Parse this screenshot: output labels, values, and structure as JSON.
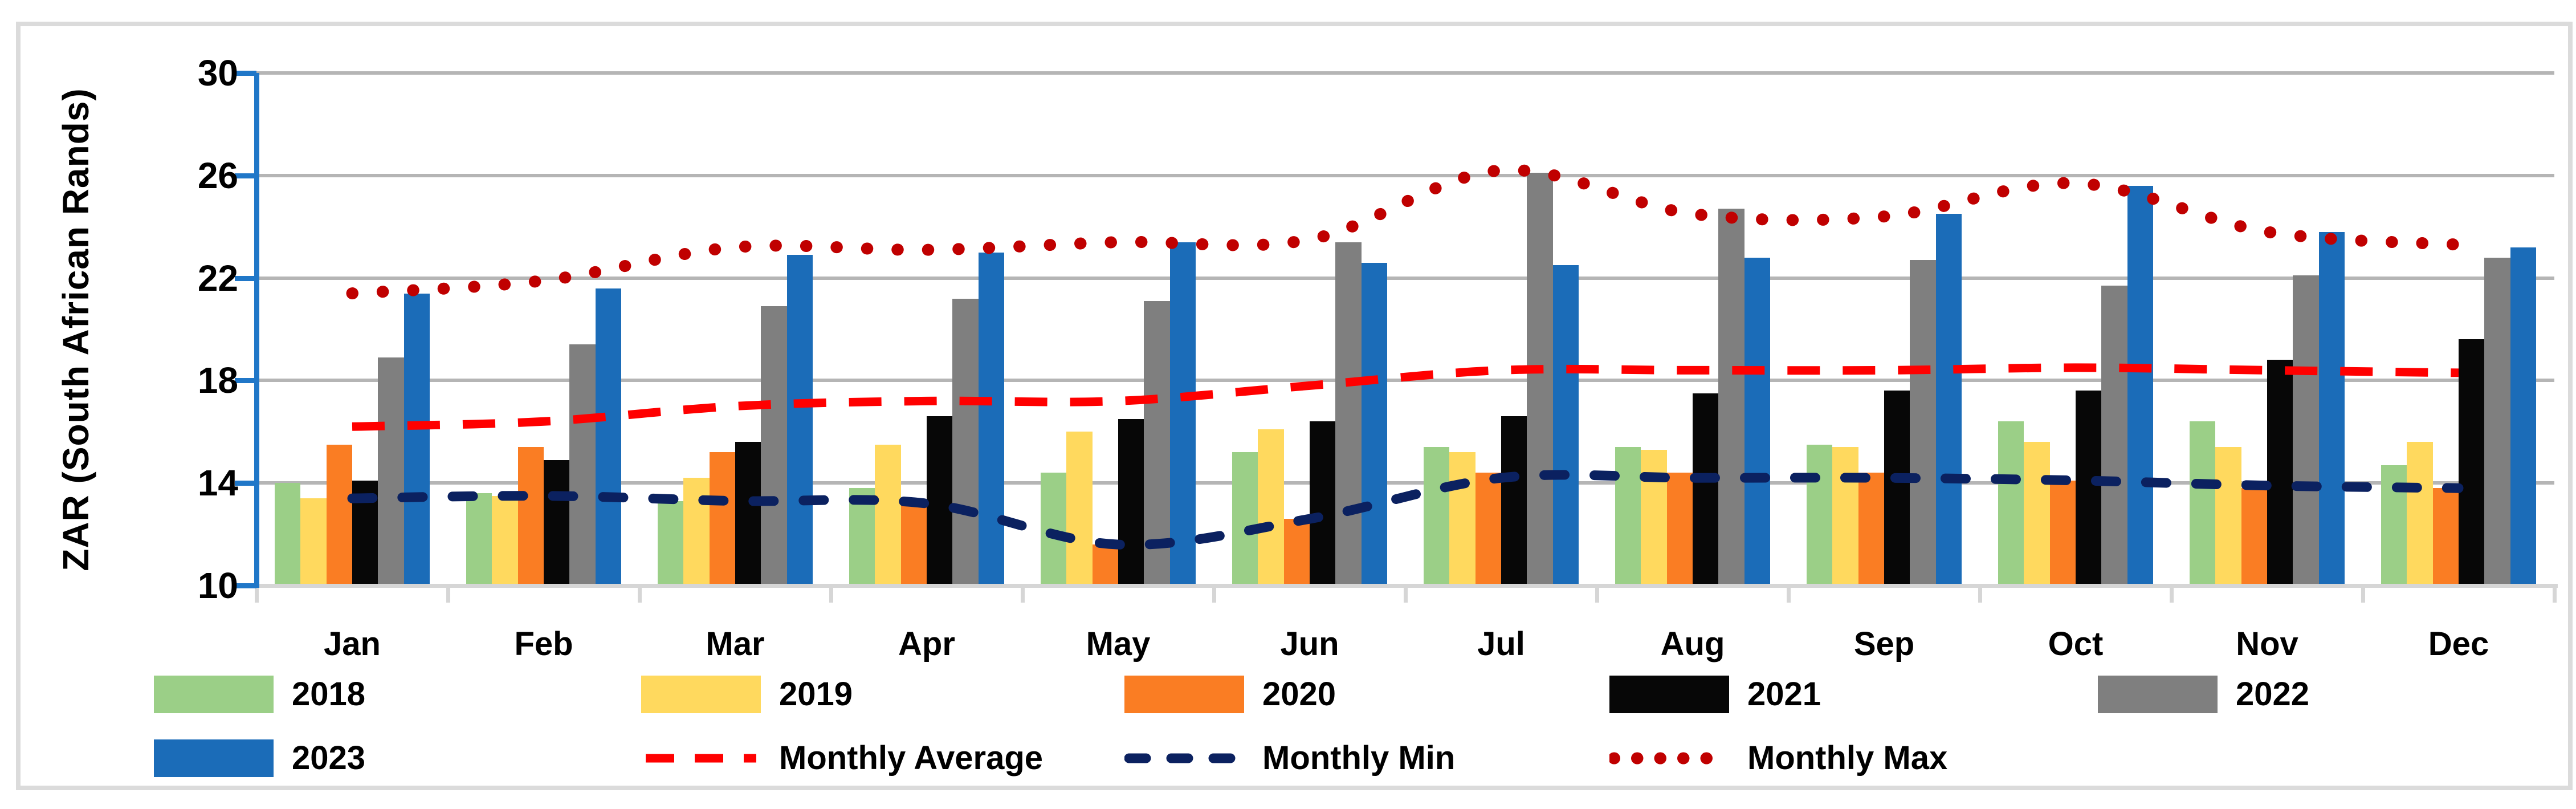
{
  "y_axis": {
    "label": "ZAR (South African Rands)",
    "ticks": [
      10,
      14,
      18,
      22,
      26,
      30
    ],
    "min": 10,
    "max": 30
  },
  "chart_data": {
    "type": "bar",
    "title": "",
    "xlabel": "",
    "ylabel": "ZAR (South African Rands)",
    "ylim": [
      10,
      30
    ],
    "yticks": [
      10,
      14,
      18,
      22,
      26,
      30
    ],
    "grid": true,
    "legend_position": "bottom",
    "categories": [
      "Jan",
      "Feb",
      "Mar",
      "Apr",
      "May",
      "Jun",
      "Jul",
      "Aug",
      "Sep",
      "Oct",
      "Nov",
      "Dec"
    ],
    "series": [
      {
        "name": "2018",
        "color": "#9BCF87",
        "values": [
          14.0,
          13.6,
          13.3,
          13.8,
          14.4,
          15.2,
          15.4,
          15.4,
          15.5,
          16.4,
          16.4,
          14.7
        ]
      },
      {
        "name": "2019",
        "color": "#FFD95E",
        "values": [
          13.4,
          13.5,
          14.2,
          15.5,
          16.0,
          16.1,
          15.2,
          15.3,
          15.4,
          15.6,
          15.4,
          15.6
        ]
      },
      {
        "name": "2020",
        "color": "#FA7D23",
        "values": [
          15.5,
          15.4,
          15.2,
          13.2,
          11.6,
          12.6,
          14.4,
          14.4,
          14.4,
          14.1,
          13.8,
          13.8
        ]
      },
      {
        "name": "2021",
        "color": "#070707",
        "values": [
          14.1,
          14.9,
          15.6,
          16.6,
          16.5,
          16.4,
          16.6,
          17.5,
          17.6,
          17.6,
          18.8,
          19.6
        ]
      },
      {
        "name": "2022",
        "color": "#7F7F7F",
        "values": [
          18.9,
          19.4,
          20.9,
          21.2,
          21.1,
          23.4,
          26.1,
          24.7,
          22.7,
          21.7,
          22.1,
          22.8
        ]
      },
      {
        "name": "2023",
        "color": "#1B6CB8",
        "values": [
          21.4,
          21.6,
          22.9,
          23.0,
          23.4,
          22.6,
          22.5,
          22.8,
          24.5,
          25.6,
          23.8,
          23.2
        ]
      }
    ],
    "lines": [
      {
        "name": "Monthly Average",
        "color": "#FF0000",
        "style": "dash",
        "values": [
          16.2,
          16.4,
          17.0,
          17.2,
          17.2,
          17.8,
          18.4,
          18.4,
          18.4,
          18.5,
          18.4,
          18.3
        ]
      },
      {
        "name": "Monthly Min",
        "color": "#0B2160",
        "style": "dash-round",
        "values": [
          13.4,
          13.5,
          13.3,
          13.2,
          11.6,
          12.6,
          14.2,
          14.2,
          14.2,
          14.1,
          13.9,
          13.8
        ]
      },
      {
        "name": "Monthly Max",
        "color": "#C00000",
        "style": "dot",
        "values": [
          21.4,
          21.9,
          23.2,
          23.1,
          23.4,
          23.5,
          26.2,
          24.5,
          24.4,
          25.7,
          23.8,
          23.3
        ]
      }
    ]
  },
  "legend": {
    "rows": [
      [
        {
          "label": "2018",
          "swatch": "bar",
          "ref": "2018"
        },
        {
          "label": "2019",
          "swatch": "bar",
          "ref": "2019"
        },
        {
          "label": "2020",
          "swatch": "bar",
          "ref": "2020"
        },
        {
          "label": "2021",
          "swatch": "bar",
          "ref": "2021"
        },
        {
          "label": "2022",
          "swatch": "bar",
          "ref": "2022"
        }
      ],
      [
        {
          "label": "2023",
          "swatch": "bar",
          "ref": "2023"
        },
        {
          "label": "Monthly Average",
          "swatch": "line",
          "ref": "Monthly Average"
        },
        {
          "label": "Monthly Min",
          "swatch": "line",
          "ref": "Monthly Min"
        },
        {
          "label": "Monthly Max",
          "swatch": "line",
          "ref": "Monthly Max"
        }
      ]
    ]
  }
}
